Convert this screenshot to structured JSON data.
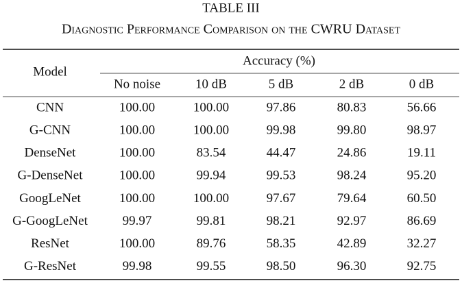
{
  "title": "TABLE III",
  "subtitle": "Diagnostic Performance Comparison on the CWRU Dataset",
  "table": {
    "header": {
      "model": "Model",
      "group": "Accuracy (%)",
      "columns": [
        "No noise",
        "10 dB",
        "5 dB",
        "2 dB",
        "0 dB"
      ]
    },
    "rows": [
      [
        "CNN",
        "100.00",
        "100.00",
        "97.86",
        "80.83",
        "56.66"
      ],
      [
        "G-CNN",
        "100.00",
        "100.00",
        "99.98",
        "99.80",
        "98.97"
      ],
      [
        "DenseNet",
        "100.00",
        "83.54",
        "44.47",
        "24.86",
        "19.11"
      ],
      [
        "G-DenseNet",
        "100.00",
        "99.94",
        "99.53",
        "98.24",
        "95.20"
      ],
      [
        "GoogLeNet",
        "100.00",
        "100.00",
        "97.67",
        "79.64",
        "60.50"
      ],
      [
        "G-GoogLeNet",
        "99.97",
        "99.81",
        "98.21",
        "92.97",
        "86.69"
      ],
      [
        "ResNet",
        "100.00",
        "89.76",
        "58.35",
        "42.89",
        "32.27"
      ],
      [
        "G-ResNet",
        "99.98",
        "99.55",
        "98.50",
        "96.30",
        "92.75"
      ]
    ]
  }
}
